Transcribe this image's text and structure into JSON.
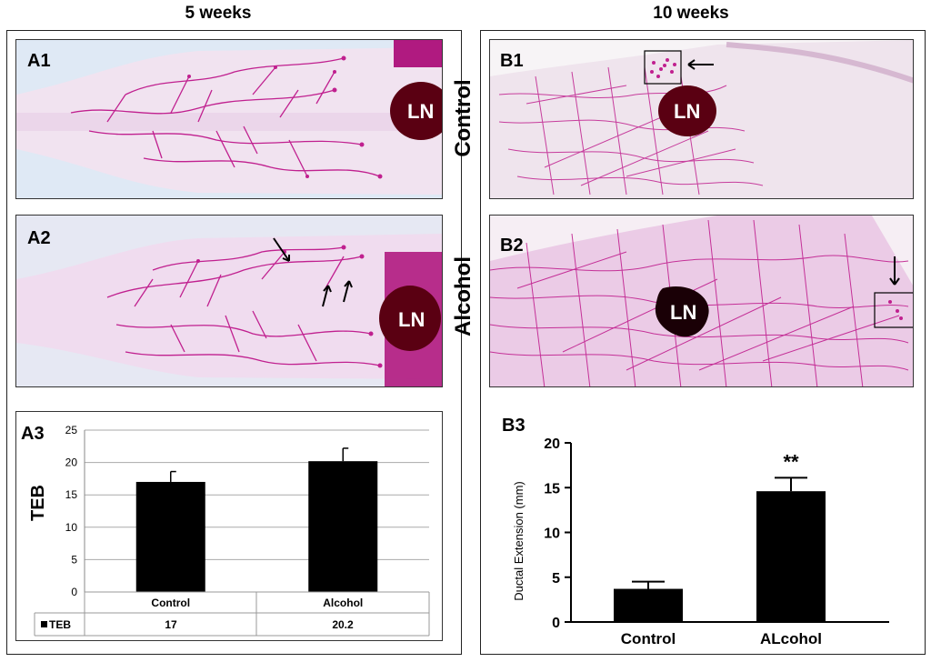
{
  "headings": {
    "left": "5 weeks",
    "right": "10 weeks"
  },
  "side_labels": {
    "control": "Control",
    "alcohol": "Alcohol"
  },
  "panels": {
    "A1": {
      "label": "A1",
      "ln": "LN"
    },
    "A2": {
      "label": "A2",
      "ln": "LN"
    },
    "A3": {
      "label": "A3"
    },
    "B1": {
      "label": "B1",
      "ln": "LN"
    },
    "B2": {
      "label": "B2",
      "ln": "LN"
    },
    "B3": {
      "label": "B3"
    }
  },
  "colors": {
    "stain": "#c0208f",
    "node": "#5a0012",
    "bar": "#000000"
  },
  "chart_data": [
    {
      "id": "A3",
      "type": "bar",
      "title": "",
      "ylabel": "TEB",
      "xlabel": "",
      "ylim": [
        0,
        25
      ],
      "yticks": [
        0,
        5,
        10,
        15,
        20,
        25
      ],
      "grid": true,
      "categories": [
        "Control",
        "Alcohol"
      ],
      "series": [
        {
          "name": "TEB",
          "values": [
            17,
            20.2
          ],
          "errors": [
            1.6,
            2.0
          ]
        }
      ],
      "data_table": {
        "legend": "TEB",
        "values": [
          "17",
          "20.2"
        ]
      }
    },
    {
      "id": "B3",
      "type": "bar",
      "title": "",
      "ylabel": "Ductal Extension (mm)",
      "xlabel": "",
      "ylim": [
        0,
        20
      ],
      "yticks": [
        0,
        5,
        10,
        15,
        20
      ],
      "grid": false,
      "categories": [
        "Control",
        "ALcohol"
      ],
      "series": [
        {
          "name": "Ductal Extension",
          "values": [
            3.7,
            14.6
          ],
          "errors": [
            0.8,
            1.5
          ]
        }
      ],
      "annotations": [
        {
          "category": "ALcohol",
          "text": "**"
        }
      ]
    }
  ]
}
